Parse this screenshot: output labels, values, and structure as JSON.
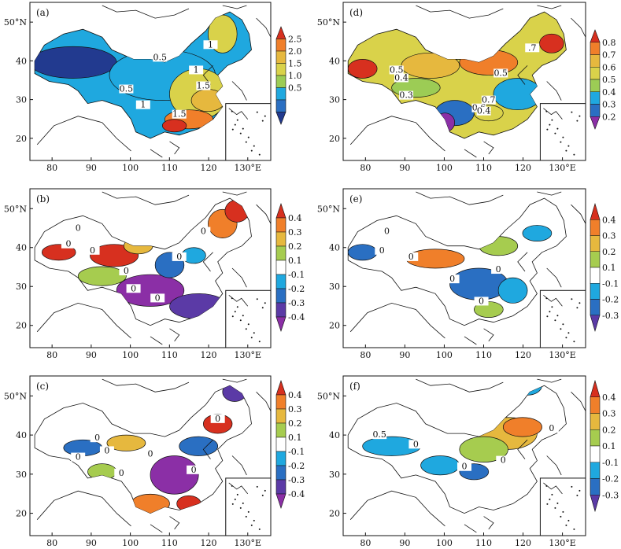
{
  "panels": [
    {
      "id": "a",
      "label": "(a)",
      "x_ticks": [
        "80",
        "90",
        "100",
        "110",
        "120",
        "130°E"
      ],
      "y_ticks": [
        "50°N",
        "40",
        "30",
        "20"
      ],
      "colorbar": {
        "labels": [
          "2.5",
          "2.0",
          "1.5",
          "1.0",
          "0.5"
        ],
        "colors": [
          "#d7301f",
          "#f07f2a",
          "#e6b83e",
          "#d9d24a",
          "#9ccc55",
          "#1fa8df",
          "#2a6fc2",
          "#223a8f"
        ]
      },
      "contour_labels": [
        "1",
        "0.5",
        "1",
        "1.5",
        "0.5",
        "1",
        "1.5"
      ]
    },
    {
      "id": "b",
      "label": "(b)",
      "x_ticks": [
        "80",
        "90",
        "100",
        "110",
        "120",
        "130°E"
      ],
      "y_ticks": [
        "50°N",
        "40",
        "30",
        "20"
      ],
      "colorbar": {
        "labels": [
          "0.4",
          "0.3",
          "0.2",
          "0.1",
          "-0.1",
          "-0.2",
          "-0.3",
          "-0.4"
        ],
        "colors": [
          "#d7301f",
          "#f07f2a",
          "#e6b83e",
          "#a6cc4f",
          "#ffffff",
          "#1fa8df",
          "#2a6fc2",
          "#5b3aa6",
          "#8b2fa6"
        ]
      },
      "contour_labels": [
        "0",
        "0",
        "0",
        "0",
        "0",
        "0",
        "0",
        "0"
      ]
    },
    {
      "id": "c",
      "label": "(c)",
      "x_ticks": [
        "80",
        "90",
        "100",
        "110",
        "120",
        "130°E"
      ],
      "y_ticks": [
        "50°N",
        "40",
        "30",
        "20"
      ],
      "colorbar": {
        "labels": [
          "0.4",
          "0.3",
          "0.2",
          "0.1",
          "-0.1",
          "-0.2",
          "-0.3",
          "-0.4"
        ],
        "colors": [
          "#d7301f",
          "#f07f2a",
          "#e6b83e",
          "#a6cc4f",
          "#ffffff",
          "#1fa8df",
          "#2a6fc2",
          "#5b3aa6",
          "#8b2fa6"
        ]
      },
      "contour_labels": [
        "0",
        "0",
        "0",
        "0",
        "0",
        "0",
        "0"
      ]
    },
    {
      "id": "d",
      "label": "(d)",
      "x_ticks": [
        "80",
        "90",
        "100",
        "110",
        "120",
        "130°E"
      ],
      "y_ticks": [
        "50°N",
        "40",
        "30",
        "20"
      ],
      "colorbar": {
        "labels": [
          "0.8",
          "0.7",
          "0.6",
          "0.5",
          "0.4",
          "0.3",
          "0.2"
        ],
        "colors": [
          "#d7301f",
          "#f07f2a",
          "#e6b83e",
          "#d9d24a",
          "#9ccc55",
          "#1fa8df",
          "#2a6fc2",
          "#8b2fa6"
        ]
      },
      "contour_labels": [
        ".7",
        "0.5",
        "0.4",
        "0.3",
        "0.5",
        "0.7",
        "0.6",
        "0.4"
      ]
    },
    {
      "id": "e",
      "label": "(e)",
      "x_ticks": [
        "80",
        "90",
        "100",
        "110",
        "120",
        "130°E"
      ],
      "y_ticks": [
        "50°N",
        "40",
        "30",
        "20"
      ],
      "colorbar": {
        "labels": [
          "0.4",
          "0.3",
          "0.2",
          "0.1",
          "-0.1",
          "-0.2",
          "-0.3"
        ],
        "colors": [
          "#d7301f",
          "#f07f2a",
          "#e6b83e",
          "#a6cc4f",
          "#ffffff",
          "#1fa8df",
          "#2a6fc2",
          "#5b3aa6"
        ]
      },
      "contour_labels": [
        "0",
        "0",
        "0",
        "0",
        "0",
        "0"
      ]
    },
    {
      "id": "f",
      "label": "(f)",
      "x_ticks": [
        "80",
        "90",
        "100",
        "110",
        "120",
        "130°E"
      ],
      "y_ticks": [
        "50°N",
        "40",
        "30",
        "20"
      ],
      "colorbar": {
        "labels": [
          "0.4",
          "0.3",
          "0.2",
          "0.1",
          "-0.1",
          "-0.2",
          "-0.3"
        ],
        "colors": [
          "#d7301f",
          "#f07f2a",
          "#e6b83e",
          "#a6cc4f",
          "#ffffff",
          "#1fa8df",
          "#2a6fc2",
          "#5b3aa6"
        ]
      },
      "contour_labels": [
        "0.5",
        "0",
        "0",
        "0",
        "0"
      ]
    }
  ]
}
